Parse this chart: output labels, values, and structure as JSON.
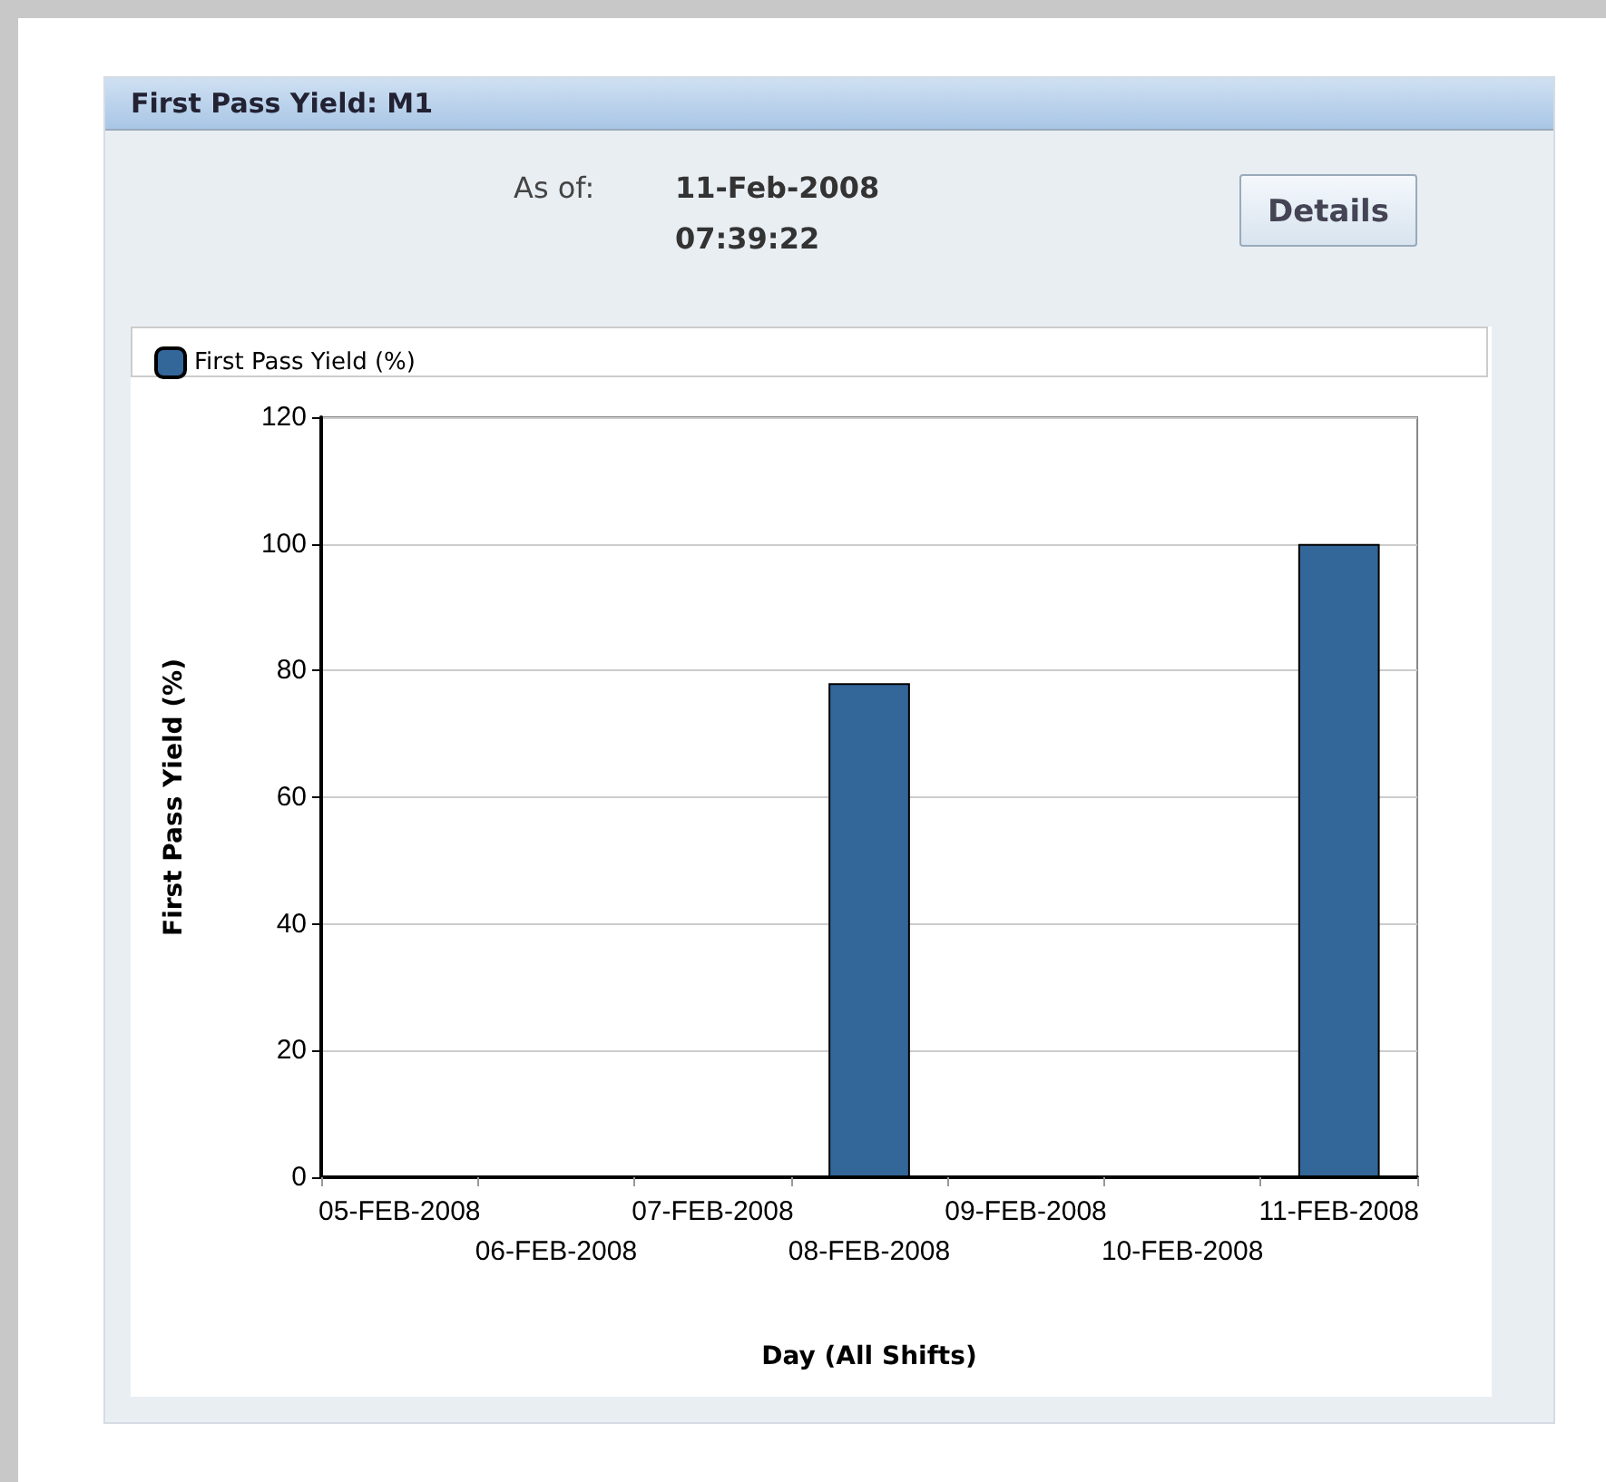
{
  "chart_data": {
    "type": "bar",
    "title": "First Pass Yield: M1",
    "xlabel": "Day (All Shifts)",
    "ylabel": "First Pass Yield (%)",
    "annotations": [
      "As of:",
      "11-Feb-2008 07:39:22",
      "Details"
    ],
    "categories": [
      "05-FEB-2008",
      "06-FEB-2008",
      "07-FEB-2008",
      "08-FEB-2008",
      "09-FEB-2008",
      "10-FEB-2008",
      "11-FEB-2008"
    ],
    "series": [
      {
        "name": "First Pass Yield (%)",
        "color": "#336699",
        "values": [
          null,
          null,
          null,
          78,
          null,
          null,
          100
        ]
      }
    ],
    "ylim": [
      0,
      120
    ],
    "yticks": [
      0,
      20,
      40,
      60,
      80,
      100,
      120
    ],
    "grid": "y",
    "legend": "top left"
  }
}
